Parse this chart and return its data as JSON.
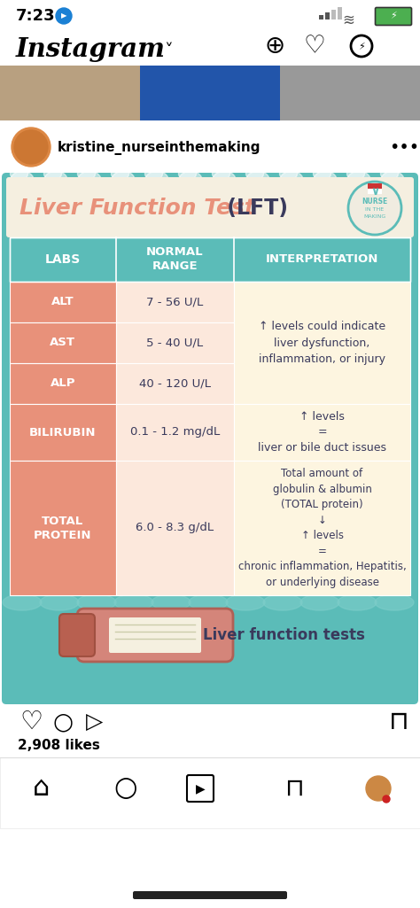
{
  "title_italic": "Liver Function Test",
  "title_bold": " (LFT)",
  "bg_color": "#5bbcb8",
  "header_bg": "#5bbcb8",
  "header_text_color": "#ffffff",
  "salmon_color": "#e8917a",
  "teal_color": "#5bbcb8",
  "cream_color": "#fdf5e0",
  "light_salmon": "#fce8dc",
  "dark_text_color": "#3a3a5c",
  "white": "#ffffff",
  "rows": [
    {
      "lab": "ALT",
      "range": "7 - 56 U/L",
      "interp": "↑ levels could indicate\nliver dysfunction,\ninflammation, or injury",
      "span": true
    },
    {
      "lab": "AST",
      "range": "5 - 40 U/L",
      "interp": "",
      "span": false
    },
    {
      "lab": "ALP",
      "range": "40 - 120 U/L",
      "interp": "",
      "span": false
    },
    {
      "lab": "BILIRUBIN",
      "range": "0.1 - 1.2 mg/dL",
      "interp": "↑ levels\n=\nliver or bile duct issues",
      "span": true
    },
    {
      "lab": "TOTAL\nPROTEIN",
      "range": "6.0 - 8.3 g/dL",
      "interp": "Total amount of\nglobulin & albumin\n(TOTAL protein)\n↓\n↑ levels\n=\nchronic inflammation, Hepatitis,\nor underlying disease",
      "span": true
    }
  ],
  "bottom_text": "Liver function tests",
  "likes_text": "2,908 likes",
  "username": "kristine_nurseinthemaking",
  "status_time": "7:23"
}
